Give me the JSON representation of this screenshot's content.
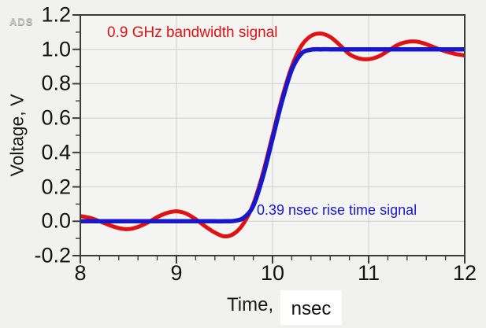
{
  "app": {
    "logo": "ADS"
  },
  "colors": {
    "background": "#f1f1ef",
    "plot_background": "#f4f4f2",
    "grid": "#cfcfcd",
    "axis": "#3c3c3c",
    "tick_label": "#141414",
    "red_signal": "#e01212",
    "blue_signal": "#1717cc"
  },
  "chart_data": {
    "type": "line",
    "title": "",
    "xlabel": "Time,",
    "xlabel_unit": "nsec",
    "ylabel": "Voltage, V",
    "xlim": [
      8,
      12
    ],
    "ylim": [
      -0.2,
      1.2
    ],
    "x_major_ticks": [
      8,
      9,
      10,
      11,
      12
    ],
    "x_tick_labels": [
      "8",
      "9",
      "10",
      "11",
      "12"
    ],
    "x_minor_step": 0.2,
    "y_major_ticks": [
      1.2,
      1.0,
      0.8,
      0.6,
      0.4,
      0.2,
      0.0,
      -0.2
    ],
    "y_tick_labels": [
      "1.2",
      "1.0",
      "0.8",
      "0.6",
      "0.4",
      "0.2",
      "0.0",
      "-0.2"
    ],
    "y_minor_step": 0.1,
    "grid_x": [
      9,
      10,
      11
    ],
    "grid_y": [
      1.0,
      0.8,
      0.6,
      0.4,
      0.2,
      0.0
    ],
    "legend_position": "none",
    "x": [
      8.0,
      8.1,
      8.2,
      8.3,
      8.4,
      8.5,
      8.6,
      8.7,
      8.8,
      8.9,
      9.0,
      9.1,
      9.2,
      9.3,
      9.4,
      9.5,
      9.6,
      9.7,
      9.8,
      9.9,
      10.0,
      10.1,
      10.2,
      10.3,
      10.4,
      10.5,
      10.6,
      10.7,
      10.8,
      10.9,
      11.0,
      11.1,
      11.2,
      11.3,
      11.4,
      11.5,
      11.6,
      11.7,
      11.8,
      11.9,
      12.0
    ],
    "series": [
      {
        "name": "0.9 GHz bandwidth signal",
        "color": "#e01212",
        "width": 5,
        "values": [
          0.03,
          0.02,
          0.0,
          -0.022,
          -0.04,
          -0.046,
          -0.033,
          -0.008,
          0.024,
          0.048,
          0.058,
          0.045,
          0.012,
          -0.03,
          -0.066,
          -0.088,
          -0.072,
          -0.012,
          0.1,
          0.28,
          0.5,
          0.72,
          0.9,
          1.02,
          1.078,
          1.092,
          1.072,
          1.025,
          0.972,
          0.947,
          0.943,
          0.958,
          0.99,
          1.025,
          1.043,
          1.045,
          1.03,
          1.008,
          0.988,
          0.973,
          0.965
        ]
      },
      {
        "name": "0.39 nsec rise time signal",
        "color": "#1717cc",
        "width": 5.5,
        "values": [
          0,
          0,
          0,
          0,
          0,
          0,
          0,
          0,
          0,
          0,
          0,
          0,
          0,
          0,
          0,
          0,
          0.002,
          0.02,
          0.09,
          0.26,
          0.48,
          0.7,
          0.88,
          0.975,
          0.998,
          1.0,
          1.0,
          1.0,
          1.0,
          1.0,
          1.0,
          1.0,
          1.0,
          1.0,
          1.0,
          1.0,
          1.0,
          1.0,
          1.0,
          1.0,
          1.0
        ]
      }
    ],
    "annotations": [
      {
        "text": "0.9 GHz bandwidth signal",
        "color": "#e01212"
      },
      {
        "text": "0.39 nsec rise time signal",
        "color": "#1717cc"
      }
    ]
  }
}
